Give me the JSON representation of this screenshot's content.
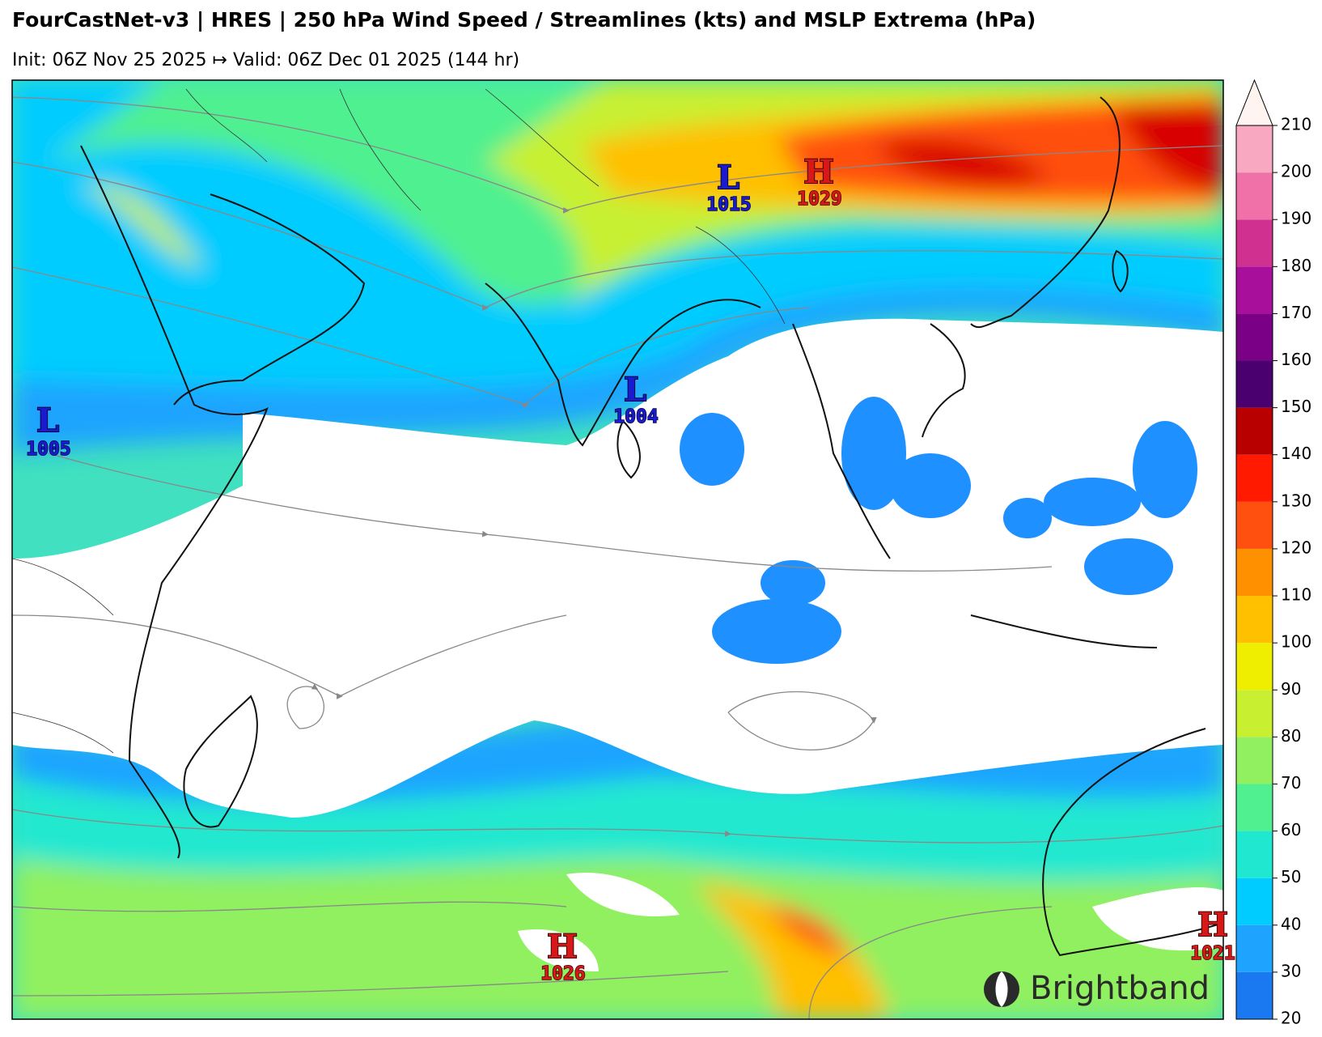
{
  "title": "FourCastNet-v3 | HRES | 250 hPa Wind Speed / Streamlines (kts) and MSLP Extrema (hPa)",
  "subtitle": "Init: 06Z Nov 25 2025 ↦ Valid: 06Z Dec 01 2025 (144 hr)",
  "pressure_centers": [
    {
      "type": "L",
      "value": 1015
    },
    {
      "type": "H",
      "value": 1029
    },
    {
      "type": "L",
      "value": 1004
    },
    {
      "type": "L",
      "value": 1005
    },
    {
      "type": "H",
      "value": 1026
    },
    {
      "type": "H",
      "value": 1021
    }
  ],
  "colorbar": {
    "lim": [
      20,
      210
    ],
    "ticks": [
      20,
      30,
      40,
      50,
      60,
      70,
      80,
      90,
      100,
      110,
      120,
      130,
      140,
      150,
      160,
      170,
      180,
      190,
      200,
      210
    ],
    "colors": [
      "#1a78f0",
      "#1ea4ff",
      "#00ccff",
      "#20e8d0",
      "#50f090",
      "#90f060",
      "#c8f030",
      "#f0ee00",
      "#ffc000",
      "#ff9000",
      "#ff5010",
      "#ff1a00",
      "#b80000",
      "#4a006e",
      "#7a0086",
      "#a8109c",
      "#d03090",
      "#f070a8",
      "#f8a8c0",
      "#fcd4d4"
    ],
    "extend_color": "#fff4f0"
  },
  "brand": "Brightband"
}
